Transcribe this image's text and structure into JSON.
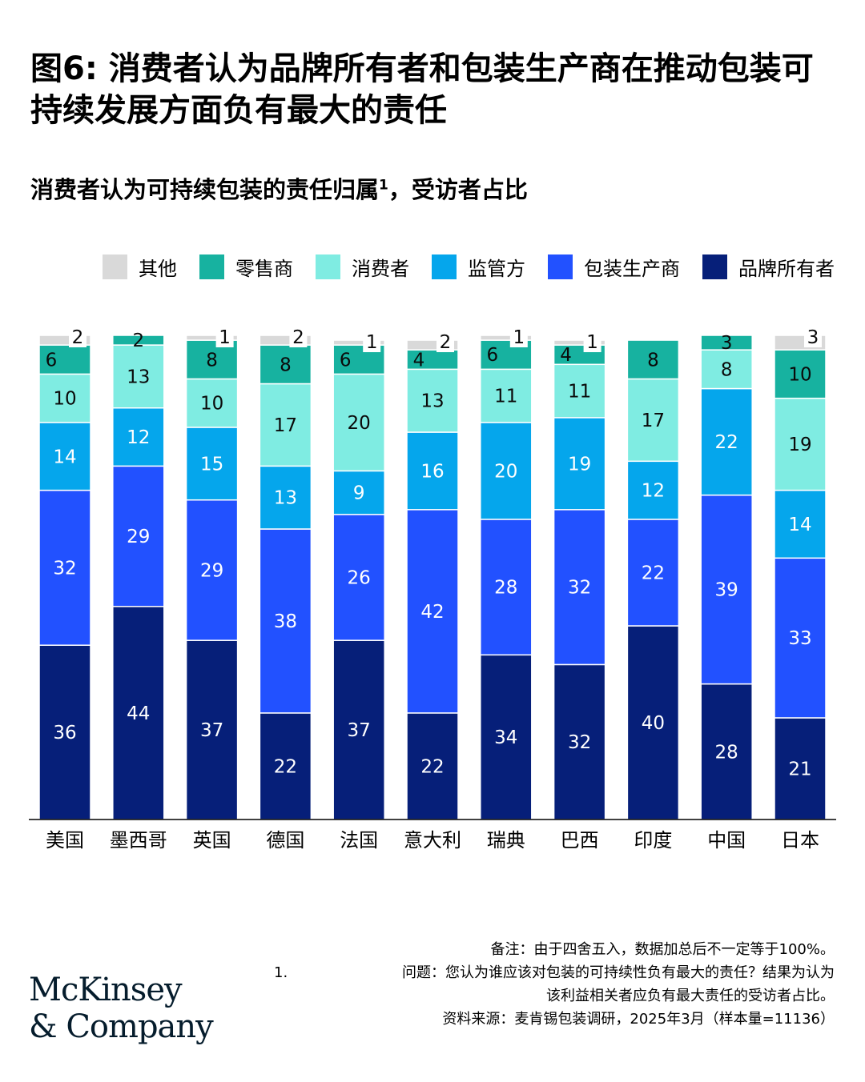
{
  "title": "图6: 消费者认为品牌所有者和包装生产商在推动包装可持续发展方面负有最大的责任",
  "subtitle": "消费者认为可持续包装的责任归属",
  "subtitle_sup": "1",
  "subtitle_tail": "，受访者占比",
  "legend": [
    {
      "label": "其他",
      "color": "#d9d9d9"
    },
    {
      "label": "零售商",
      "color": "#17b2a0"
    },
    {
      "label": "消费者",
      "color": "#7fece2"
    },
    {
      "label": "监管方",
      "color": "#05a6ec"
    },
    {
      "label": "包装生产商",
      "color": "#2251ff"
    },
    {
      "label": "品牌所有者",
      "color": "#061f79"
    }
  ],
  "chart_data": {
    "type": "bar",
    "stacked": true,
    "categories": [
      "美国",
      "墨西哥",
      "英国",
      "德国",
      "法国",
      "意大利",
      "瑞典",
      "巴西",
      "印度",
      "中国",
      "日本"
    ],
    "series": [
      {
        "name": "品牌所有者",
        "color": "#061f79",
        "values": [
          36,
          44,
          37,
          22,
          37,
          22,
          34,
          32,
          40,
          28,
          21
        ]
      },
      {
        "name": "包装生产商",
        "color": "#2251ff",
        "values": [
          32,
          29,
          29,
          38,
          26,
          42,
          28,
          32,
          22,
          39,
          33
        ]
      },
      {
        "name": "监管方",
        "color": "#05a6ec",
        "values": [
          14,
          12,
          15,
          13,
          9,
          16,
          20,
          19,
          12,
          22,
          14
        ]
      },
      {
        "name": "消费者",
        "color": "#7fece2",
        "values": [
          10,
          13,
          10,
          17,
          20,
          13,
          11,
          11,
          17,
          8,
          19
        ]
      },
      {
        "name": "零售商",
        "color": "#17b2a0",
        "values": [
          6,
          2,
          8,
          8,
          6,
          4,
          6,
          4,
          8,
          3,
          10
        ]
      },
      {
        "name": "其他",
        "color": "#d9d9d9",
        "values": [
          2,
          0,
          1,
          2,
          1,
          2,
          1,
          1,
          0,
          0,
          3
        ]
      }
    ],
    "ylim": [
      0,
      100
    ],
    "xlabel": "",
    "ylabel": ""
  },
  "notes": {
    "note": "备注：由于四舍五入，数据加总后不一定等于100%。",
    "footnote_num": "1.",
    "footnote_line1": "问题：您认为谁应该对包装的可持续性负有最大的责任？结果为认为",
    "footnote_line2": "该利益相关者应负有最大责任的受访者占比。",
    "source": "资料来源：麦肯锡包装调研，2025年3月（样本量=11136）"
  },
  "logo": {
    "line1": "McKinsey",
    "line2": "& Company"
  }
}
